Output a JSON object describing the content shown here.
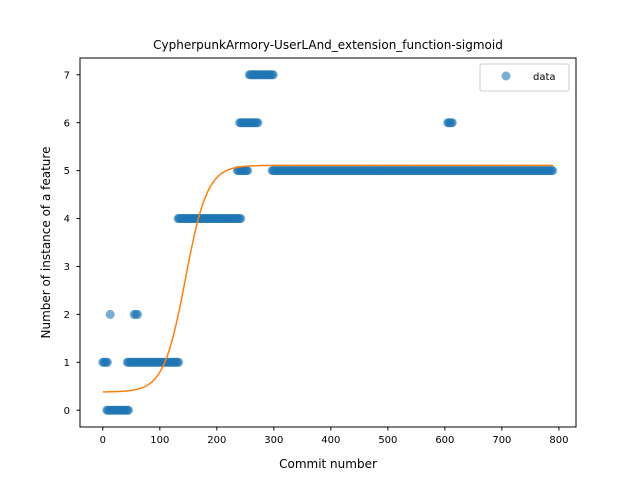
{
  "chart_data": {
    "type": "scatter",
    "title": "CypherpunkArmory-UserLAnd_extension_function-sigmoid",
    "xlabel": "Commit number",
    "ylabel": "Number of instance of a feature",
    "xlim": [
      -40,
      830
    ],
    "ylim": [
      -0.35,
      7.35
    ],
    "xticks": [
      0,
      100,
      200,
      300,
      400,
      500,
      600,
      700,
      800
    ],
    "yticks": [
      0,
      1,
      2,
      3,
      4,
      5,
      6,
      7
    ],
    "grid": false,
    "legend_position": "top-right",
    "colors": {
      "data": "#1f77b4",
      "fit": "#ff7f0e"
    },
    "series": [
      {
        "name": "data",
        "kind": "scatter",
        "segments": [
          {
            "y": 1,
            "x_from": 0,
            "x_to": 8,
            "step": 2
          },
          {
            "y": 0,
            "x_from": 7,
            "x_to": 46,
            "step": 2
          },
          {
            "y": 2,
            "x": [
              13,
              55,
              58,
              61
            ]
          },
          {
            "y": 1,
            "x_from": 43,
            "x_to": 133,
            "step": 2
          },
          {
            "y": 4,
            "x_from": 132,
            "x_to": 242,
            "step": 2
          },
          {
            "y": 5,
            "x_from": 236,
            "x_to": 255,
            "step": 2
          },
          {
            "y": 6,
            "x_from": 240,
            "x_to": 272,
            "step": 2
          },
          {
            "y": 7,
            "x_from": 257,
            "x_to": 300,
            "step": 2
          },
          {
            "y": 5,
            "x_from": 297,
            "x_to": 790,
            "step": 2
          },
          {
            "y": 6,
            "x_from": 605,
            "x_to": 613,
            "step": 2
          }
        ]
      },
      {
        "kind": "line",
        "model": "sigmoid",
        "params": {
          "L": 4.73,
          "x0": 145,
          "k": 0.052,
          "b": 0.38
        },
        "x_range": [
          0,
          790
        ]
      }
    ]
  }
}
